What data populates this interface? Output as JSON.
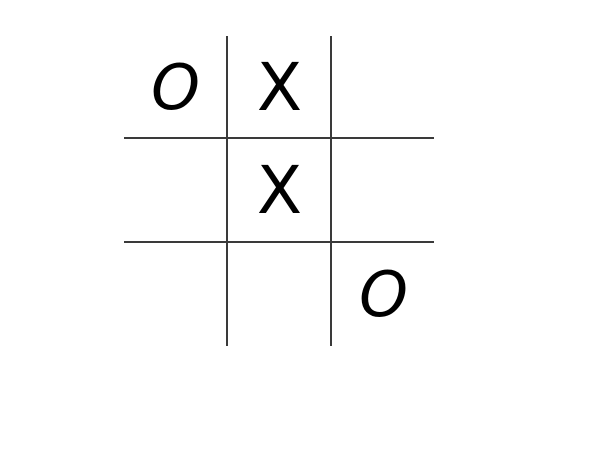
{
  "game": {
    "board": [
      [
        "O",
        "X",
        ""
      ],
      [
        "",
        "X",
        ""
      ],
      [
        "",
        "",
        "O"
      ]
    ]
  },
  "colors": {
    "background": "#ffffff",
    "grid": "#3a3a3a",
    "mark": "#000000"
  }
}
